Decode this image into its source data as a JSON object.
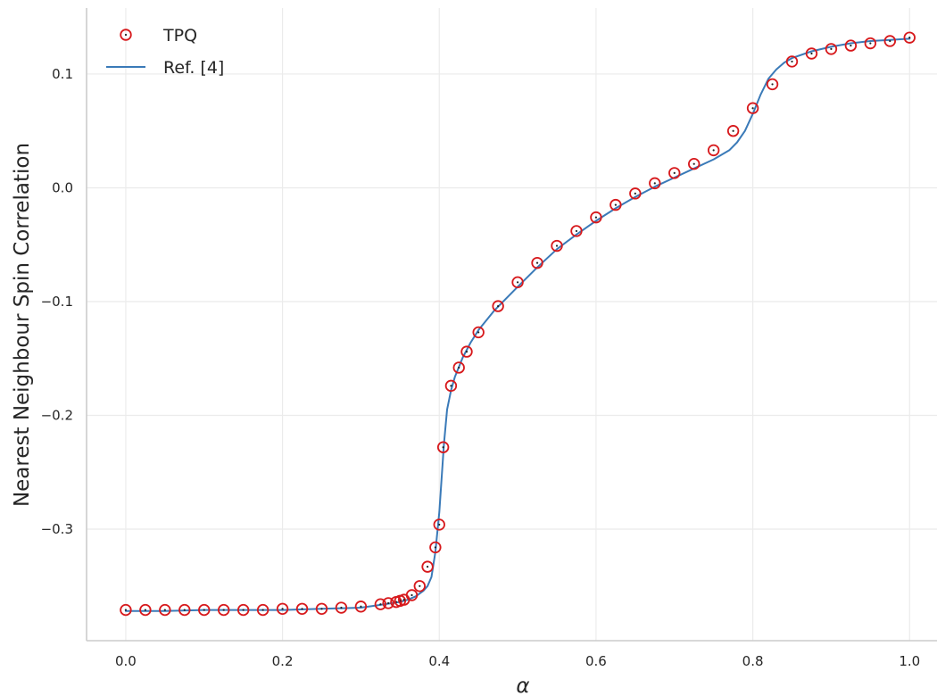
{
  "chart_data": {
    "type": "scatter",
    "xlabel": "α",
    "ylabel": "Nearest Neighbour Spin Correlation",
    "xlim": [
      -0.05,
      1.035
    ],
    "ylim": [
      -0.398,
      0.158
    ],
    "grid": true,
    "legend_placement": "top-left",
    "x_ticks": [
      0.0,
      0.2,
      0.4,
      0.6,
      0.8,
      1.0
    ],
    "x_tick_labels": [
      "0.0",
      "0.2",
      "0.4",
      "0.6",
      "0.8",
      "1.0"
    ],
    "y_ticks": [
      -0.3,
      -0.2,
      -0.1,
      0.0,
      0.1
    ],
    "y_tick_labels": [
      "−0.3",
      "−0.2",
      "−0.1",
      "0.0",
      "0.1"
    ],
    "colors": {
      "markers": "#d7191c",
      "line": "#3a7ab8",
      "grid": "#ebebeb",
      "spine": "#cccccc"
    },
    "series": [
      {
        "name": "TPQ",
        "kind": "markers",
        "x": [
          0.0,
          0.025,
          0.05,
          0.075,
          0.1,
          0.125,
          0.15,
          0.175,
          0.2,
          0.225,
          0.25,
          0.275,
          0.3,
          0.325,
          0.335,
          0.345,
          0.35,
          0.355,
          0.365,
          0.375,
          0.385,
          0.395,
          0.4,
          0.405,
          0.415,
          0.425,
          0.435,
          0.45,
          0.475,
          0.5,
          0.525,
          0.55,
          0.575,
          0.6,
          0.625,
          0.65,
          0.675,
          0.7,
          0.725,
          0.75,
          0.775,
          0.8,
          0.825,
          0.85,
          0.875,
          0.9,
          0.925,
          0.95,
          0.975,
          1.0
        ],
        "y": [
          -0.371,
          -0.371,
          -0.371,
          -0.371,
          -0.371,
          -0.371,
          -0.371,
          -0.371,
          -0.37,
          -0.37,
          -0.37,
          -0.369,
          -0.368,
          -0.366,
          -0.365,
          -0.364,
          -0.363,
          -0.362,
          -0.358,
          -0.35,
          -0.333,
          -0.316,
          -0.296,
          -0.228,
          -0.174,
          -0.158,
          -0.144,
          -0.127,
          -0.104,
          -0.083,
          -0.066,
          -0.051,
          -0.038,
          -0.026,
          -0.015,
          -0.005,
          0.004,
          0.013,
          0.021,
          0.033,
          0.05,
          0.07,
          0.091,
          0.111,
          0.118,
          0.122,
          0.125,
          0.127,
          0.129,
          0.132
        ]
      },
      {
        "name": "Ref. [4]",
        "kind": "line",
        "x": [
          0.0,
          0.05,
          0.1,
          0.15,
          0.2,
          0.25,
          0.3,
          0.32,
          0.34,
          0.35,
          0.36,
          0.37,
          0.38,
          0.385,
          0.39,
          0.395,
          0.4,
          0.403,
          0.406,
          0.41,
          0.415,
          0.42,
          0.43,
          0.44,
          0.45,
          0.47,
          0.5,
          0.525,
          0.55,
          0.575,
          0.6,
          0.625,
          0.65,
          0.675,
          0.7,
          0.725,
          0.75,
          0.77,
          0.78,
          0.79,
          0.8,
          0.81,
          0.82,
          0.83,
          0.84,
          0.85,
          0.875,
          0.9,
          0.925,
          0.95,
          0.975,
          1.0
        ],
        "y": [
          -0.372,
          -0.372,
          -0.371,
          -0.371,
          -0.371,
          -0.37,
          -0.369,
          -0.367,
          -0.365,
          -0.364,
          -0.362,
          -0.359,
          -0.354,
          -0.35,
          -0.342,
          -0.32,
          -0.285,
          -0.255,
          -0.225,
          -0.195,
          -0.178,
          -0.166,
          -0.149,
          -0.136,
          -0.125,
          -0.108,
          -0.087,
          -0.07,
          -0.054,
          -0.041,
          -0.029,
          -0.018,
          -0.008,
          0.001,
          0.009,
          0.017,
          0.025,
          0.033,
          0.04,
          0.05,
          0.065,
          0.082,
          0.096,
          0.104,
          0.11,
          0.114,
          0.12,
          0.124,
          0.127,
          0.129,
          0.13,
          0.131
        ]
      }
    ]
  }
}
